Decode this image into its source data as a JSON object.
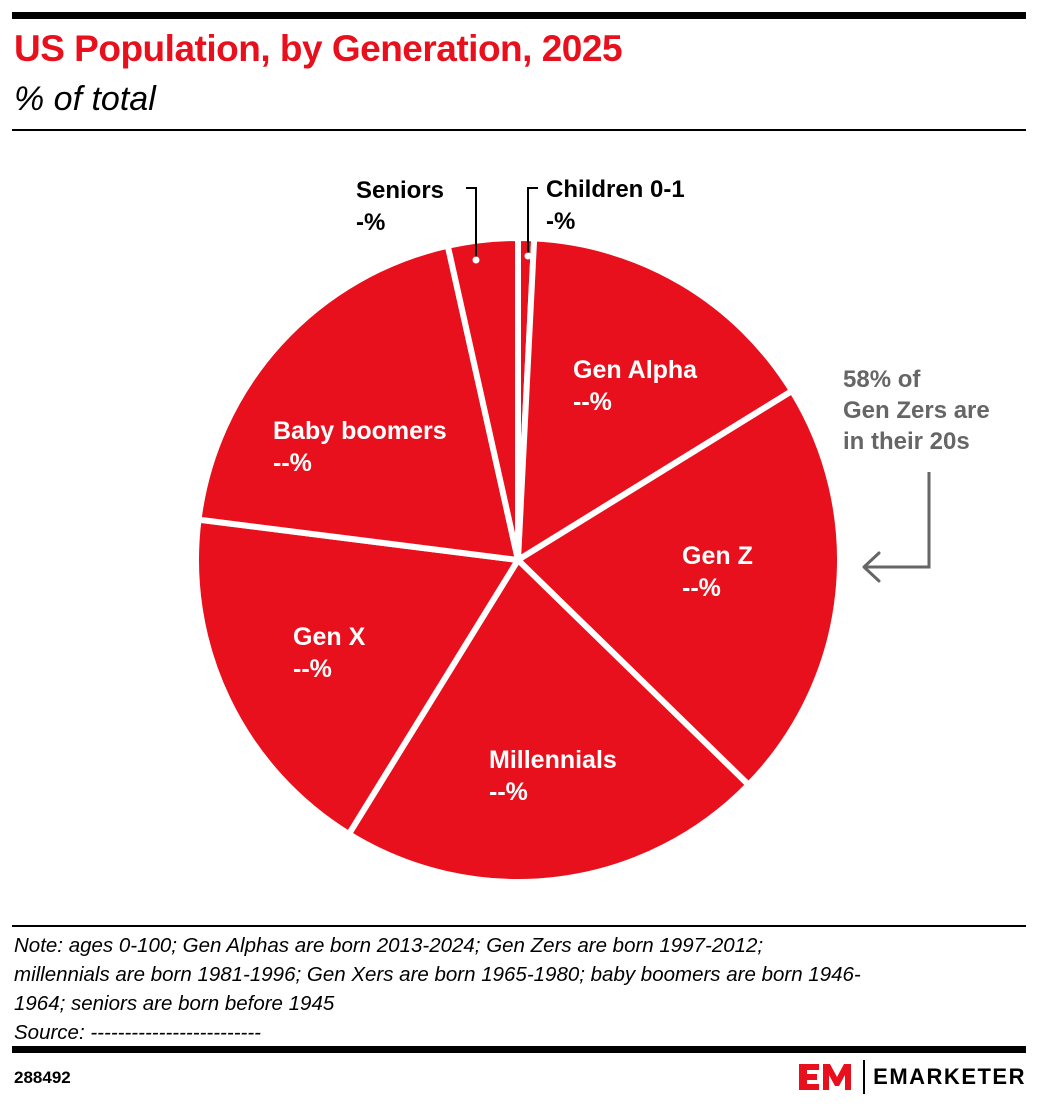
{
  "header": {
    "title": "US Population, by Generation, 2025",
    "subtitle": "% of total"
  },
  "colors": {
    "slice": "#e8101c",
    "separator": "#ffffff",
    "annotation": "#666666",
    "brand": "#e8101c"
  },
  "chart_data": {
    "type": "pie",
    "title": "US Population, by Generation, 2025",
    "subtitle": "% of total",
    "value_unit": "%",
    "slices": [
      {
        "name": "Children 0-1",
        "value_label": "-%",
        "approx_share": 0.8
      },
      {
        "name": "Gen Alpha",
        "value_label": "--%",
        "approx_share": 15.4
      },
      {
        "name": "Gen Z",
        "value_label": "--%",
        "approx_share": 21.1
      },
      {
        "name": "Millennials",
        "value_label": "--%",
        "approx_share": 21.5
      },
      {
        "name": "Gen X",
        "value_label": "--%",
        "approx_share": 18.2
      },
      {
        "name": "Baby boomers",
        "value_label": "--%",
        "approx_share": 19.5
      },
      {
        "name": "Seniors",
        "value_label": "-%",
        "approx_share": 3.5
      }
    ],
    "annotation": {
      "lines": [
        "58% of",
        "Gen Zers are",
        "in their 20s"
      ],
      "points_to": "Gen Z"
    }
  },
  "footer": {
    "note_lines": [
      "Note: ages 0-100; Gen Alphas are born 2013-2024; Gen Zers are born 1997-2012;",
      "millennials are born 1981-1996; Gen Xers are born 1965-1980; baby boomers are born 1946-",
      "1964; seniors are born before 1945"
    ],
    "source": "Source: -------------------------",
    "chart_id": "288492",
    "brand": "EMARKETER",
    "brand_logo_text": "EM"
  }
}
